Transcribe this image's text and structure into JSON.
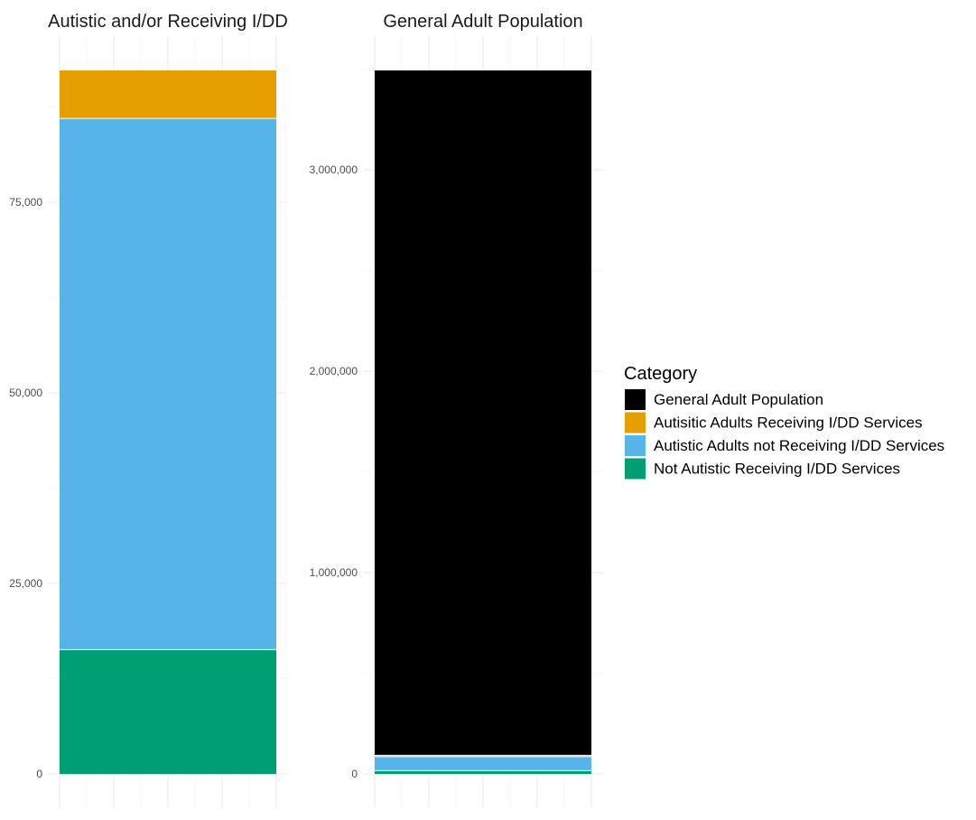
{
  "chart_data": [
    {
      "type": "bar",
      "stacked": true,
      "title": "Autistic and/or Receiving I/DD",
      "xlabel": "",
      "ylabel": "",
      "ylim": [
        0,
        92000
      ],
      "yticks": [
        0,
        25000,
        50000,
        75000
      ],
      "ytick_labels": [
        "0",
        "25,000",
        "50,000",
        "75,000"
      ],
      "grid": true,
      "series": [
        {
          "name": "Not Autistic Receiving I/DD Services",
          "color": "#009E73",
          "values": [
            16300
          ]
        },
        {
          "name": "Autistic Adults not Receiving I/DD Services",
          "color": "#56B4E9",
          "values": [
            69700
          ]
        },
        {
          "name": "Autisitic Adults Receiving I/DD Services",
          "color": "#E69F00",
          "values": [
            6300
          ]
        }
      ]
    },
    {
      "type": "bar",
      "stacked": true,
      "title": "General Adult Population",
      "xlabel": "",
      "ylabel": "",
      "ylim": [
        0,
        3500000
      ],
      "yticks": [
        0,
        1000000,
        2000000,
        3000000
      ],
      "ytick_labels": [
        "0",
        "1,000,000",
        "2,000,000",
        "3,000,000"
      ],
      "grid": true,
      "series": [
        {
          "name": "Not Autistic Receiving I/DD Services",
          "color": "#009E73",
          "values": [
            16300
          ]
        },
        {
          "name": "Autistic Adults not Receiving I/DD Services",
          "color": "#56B4E9",
          "values": [
            69700
          ]
        },
        {
          "name": "Autisitic Adults Receiving I/DD Services",
          "color": "#E69F00",
          "values": [
            6300
          ]
        },
        {
          "name": "General Adult Population",
          "color": "#000000",
          "values": [
            3402000
          ]
        }
      ]
    }
  ],
  "legend": {
    "title": "Category",
    "placement": "right",
    "items": [
      {
        "label": "General Adult Population",
        "color": "#000000"
      },
      {
        "label": "Autisitic Adults Receiving I/DD Services",
        "color": "#E69F00"
      },
      {
        "label": "Autistic Adults not Receiving I/DD Services",
        "color": "#56B4E9"
      },
      {
        "label": "Not Autistic Receiving I/DD Services",
        "color": "#009E73"
      }
    ]
  }
}
